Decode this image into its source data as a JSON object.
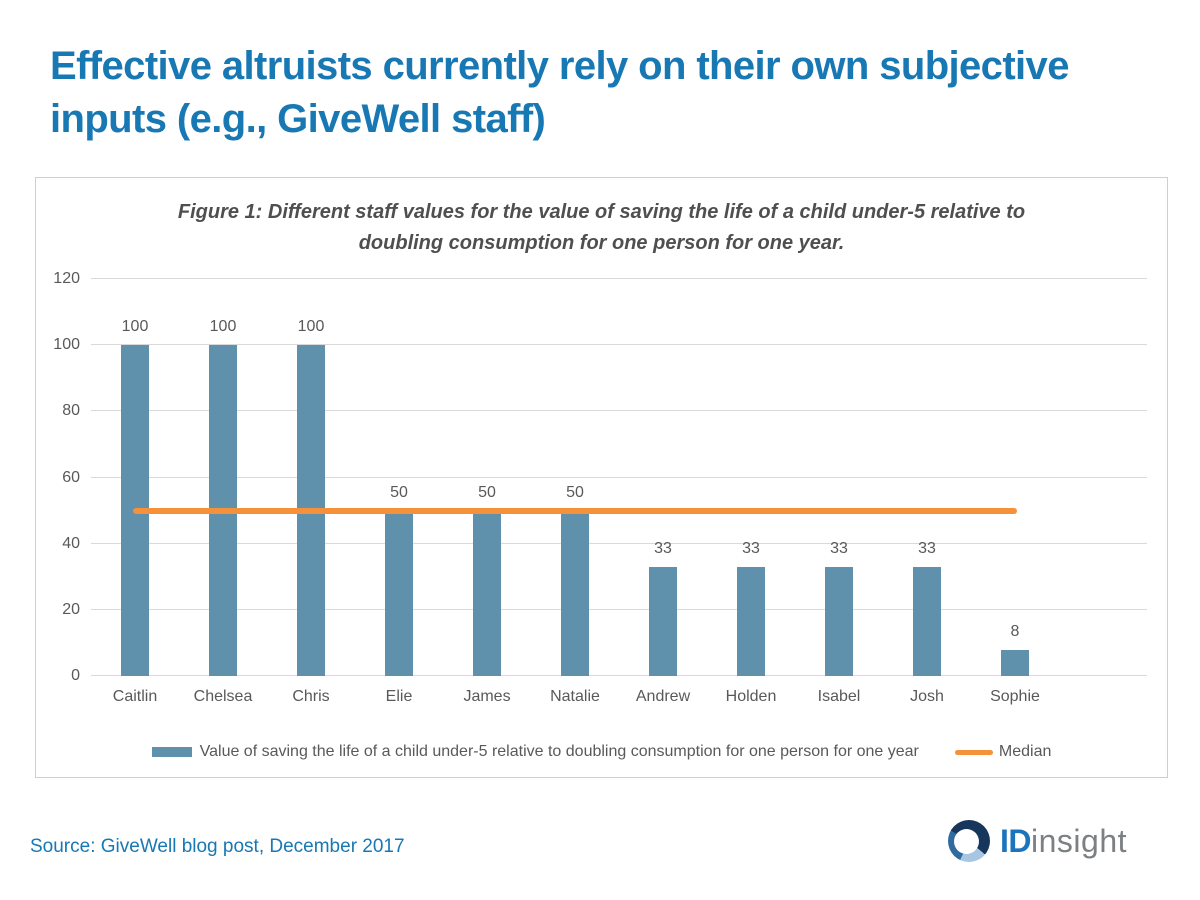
{
  "slide": {
    "title_line1": "Effective altruists currently rely on their own subjective",
    "title_line2": "inputs (e.g., GiveWell staff)",
    "source_text": "Source: GiveWell blog post, December 2017"
  },
  "logo": {
    "id_text": "ID",
    "insight_text": "insight"
  },
  "colors": {
    "title_blue": "#1778b4",
    "bar_blue": "#5f91ac",
    "median_orange": "#f5913b",
    "text_gray": "#595959",
    "grid_gray": "#d9d9d9",
    "logo_id_blue": "#1c75bc",
    "logo_insight_gray": "#7d8083"
  },
  "chart_data": {
    "type": "bar",
    "title": "Figure 1: Different staff values for the value of saving the life of a child under-5 relative to doubling consumption for one person for one year.",
    "title_line1": "Figure 1: Different staff values for the value of saving the life of a child under-5 relative to",
    "title_line2": "doubling consumption for one person for one year.",
    "categories": [
      "Caitlin",
      "Chelsea",
      "Chris",
      "Elie",
      "James",
      "Natalie",
      "Andrew",
      "Holden",
      "Isabel",
      "Josh",
      "Sophie"
    ],
    "values": [
      100,
      100,
      100,
      50,
      50,
      50,
      33,
      33,
      33,
      33,
      8
    ],
    "data_labels": [
      "100",
      "100",
      "100",
      "50",
      "50",
      "50",
      "33",
      "33",
      "33",
      "33",
      "8"
    ],
    "median_value": 50,
    "ylim": [
      0,
      120
    ],
    "ytick_step": 20,
    "yticks": [
      0,
      20,
      40,
      60,
      80,
      100,
      120
    ],
    "grid": true,
    "legend_position": "bottom",
    "legend": {
      "bar": {
        "label": "Value of saving the life of a child under-5 relative to doubling consumption for one person for one year"
      },
      "median": {
        "label": "Median"
      }
    }
  }
}
